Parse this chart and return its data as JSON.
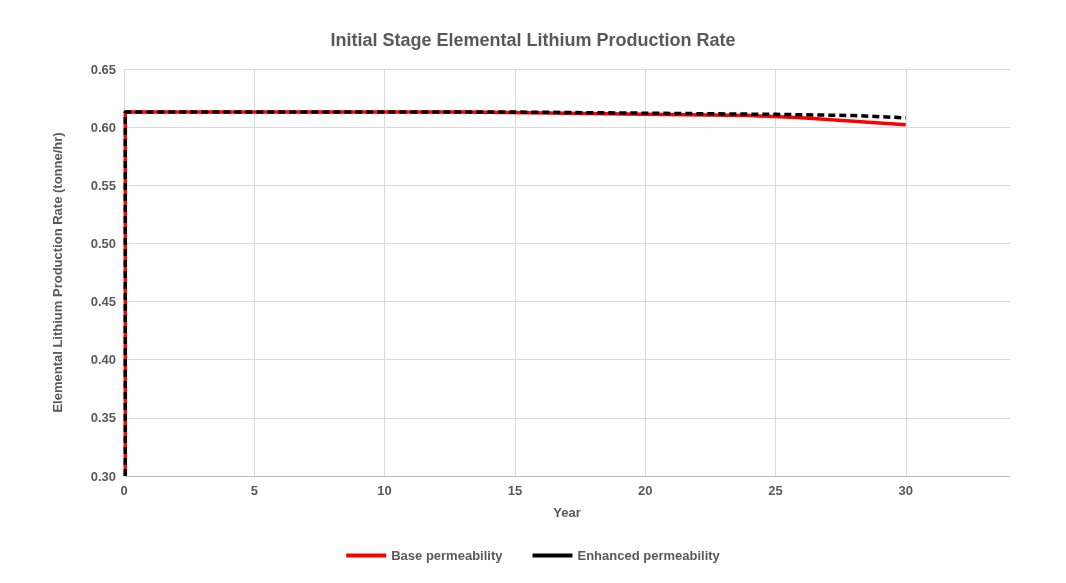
{
  "chart_data": {
    "type": "line",
    "title": "Initial Stage Elemental Lithium Production Rate",
    "xlabel": "Year",
    "ylabel": "Elemental Lithium Production Rate (tonne/hr)",
    "xlim": [
      0,
      34
    ],
    "xticks": [
      0,
      5,
      10,
      15,
      20,
      25,
      30
    ],
    "ylim": [
      0.3,
      0.65
    ],
    "yticks": [
      {
        "value": 0.3,
        "label": "0.30"
      },
      {
        "value": 0.35,
        "label": "0.35"
      },
      {
        "value": 0.4,
        "label": "0.40"
      },
      {
        "value": 0.45,
        "label": "0.45"
      },
      {
        "value": 0.5,
        "label": "0.50"
      },
      {
        "value": 0.55,
        "label": "0.55"
      },
      {
        "value": 0.6,
        "label": "0.60"
      },
      {
        "value": 0.65,
        "label": "0.65"
      }
    ],
    "grid": true,
    "legend": "bottom",
    "marker": "none",
    "series": [
      {
        "name": "Base permeability",
        "color": "#ff0000",
        "line_style": "solid",
        "x": [
          0.05,
          0.05,
          5,
          10,
          13,
          17,
          20,
          24,
          26,
          28,
          30
        ],
        "values": [
          0.3,
          0.613,
          0.613,
          0.613,
          0.613,
          0.612,
          0.611,
          0.61,
          0.608,
          0.605,
          0.602
        ]
      },
      {
        "name": "Enhanced permeability",
        "color": "#000000",
        "line_style": "dashed",
        "x": [
          0.05,
          0.05,
          5,
          10,
          15,
          20,
          25,
          28,
          30
        ],
        "values": [
          0.3,
          0.613,
          0.613,
          0.613,
          0.613,
          0.612,
          0.611,
          0.61,
          0.608
        ]
      }
    ]
  }
}
